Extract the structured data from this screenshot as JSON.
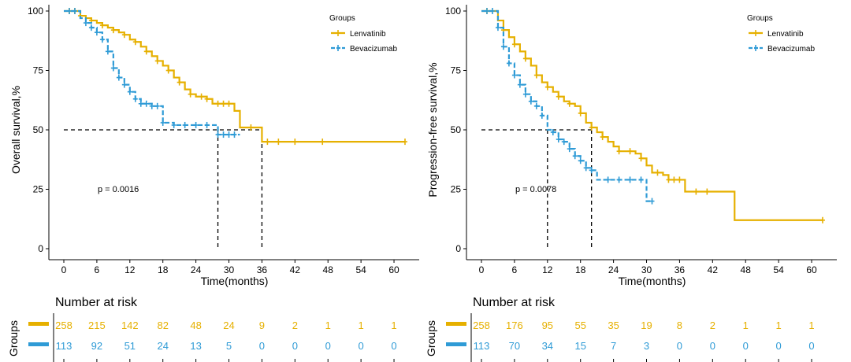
{
  "colors": {
    "lenvatinib": "#E6B000",
    "bevacizumab": "#2F9BD6",
    "ref_line": "#000000"
  },
  "chart_data": [
    {
      "type": "line",
      "subtype": "kaplan-meier",
      "title": "",
      "xlabel": "Time(months)",
      "ylabel": "Overall survival,%",
      "xticks": [
        0,
        6,
        12,
        18,
        24,
        30,
        36,
        42,
        48,
        54,
        60
      ],
      "yticks": [
        0,
        25,
        50,
        75,
        100
      ],
      "xlim": [
        0,
        62
      ],
      "ylim": [
        0,
        100
      ],
      "legend_title": "Groups",
      "pvalue_label": "p = 0.0016",
      "median_lines": [
        28,
        36
      ],
      "series": [
        {
          "name": "Lenvatinib",
          "key": "lenvatinib",
          "steps": [
            [
              0,
              100
            ],
            [
              2,
              100
            ],
            [
              3,
              98
            ],
            [
              4,
              97
            ],
            [
              5,
              96
            ],
            [
              6,
              95
            ],
            [
              7,
              94
            ],
            [
              8,
              93
            ],
            [
              9,
              92
            ],
            [
              10,
              91
            ],
            [
              11,
              90
            ],
            [
              12,
              88
            ],
            [
              13,
              87
            ],
            [
              14,
              85
            ],
            [
              15,
              83
            ],
            [
              16,
              81
            ],
            [
              17,
              79
            ],
            [
              18,
              77
            ],
            [
              19,
              75
            ],
            [
              20,
              72
            ],
            [
              21,
              70
            ],
            [
              22,
              67
            ],
            [
              23,
              65
            ],
            [
              24,
              64
            ],
            [
              26,
              63
            ],
            [
              27,
              61
            ],
            [
              31,
              58
            ],
            [
              32,
              51
            ],
            [
              36,
              45
            ],
            [
              62,
              45
            ]
          ],
          "censor_x": [
            1,
            2,
            3,
            5,
            7,
            9,
            11,
            13,
            15,
            17,
            19,
            21,
            23,
            25,
            26,
            28,
            29,
            30,
            34,
            37,
            39,
            42,
            47,
            62
          ],
          "risk": [
            258,
            215,
            142,
            82,
            48,
            24,
            9,
            2,
            1,
            1,
            1
          ]
        },
        {
          "name": "Bevacizumab",
          "key": "bevacizumab",
          "steps": [
            [
              0,
              100
            ],
            [
              2,
              100
            ],
            [
              3,
              97
            ],
            [
              4,
              95
            ],
            [
              5,
              93
            ],
            [
              6,
              91
            ],
            [
              7,
              88
            ],
            [
              8,
              83
            ],
            [
              9,
              76
            ],
            [
              10,
              72
            ],
            [
              11,
              69
            ],
            [
              12,
              66
            ],
            [
              13,
              63
            ],
            [
              14,
              61
            ],
            [
              16,
              60
            ],
            [
              18,
              53
            ],
            [
              20,
              52
            ],
            [
              28,
              48
            ],
            [
              32,
              48
            ]
          ],
          "censor_x": [
            1,
            2,
            4,
            5,
            6,
            7,
            8,
            9,
            10,
            11,
            12,
            13,
            14,
            15,
            16,
            17,
            18,
            20,
            22,
            24,
            26,
            28,
            29,
            30,
            31
          ],
          "risk": [
            113,
            92,
            51,
            24,
            13,
            5,
            0,
            0,
            0,
            0,
            0
          ]
        }
      ]
    },
    {
      "type": "line",
      "subtype": "kaplan-meier",
      "title": "",
      "xlabel": "Time(months)",
      "ylabel": "Progression-free survival,%",
      "xticks": [
        0,
        6,
        12,
        18,
        24,
        30,
        36,
        42,
        48,
        54,
        60
      ],
      "yticks": [
        0,
        25,
        50,
        75,
        100
      ],
      "xlim": [
        0,
        62
      ],
      "ylim": [
        0,
        100
      ],
      "legend_title": "Groups",
      "pvalue_label": "p = 0.0078",
      "median_lines": [
        12,
        20
      ],
      "series": [
        {
          "name": "Lenvatinib",
          "key": "lenvatinib",
          "steps": [
            [
              0,
              100
            ],
            [
              2,
              100
            ],
            [
              3,
              96
            ],
            [
              4,
              92
            ],
            [
              5,
              89
            ],
            [
              6,
              86
            ],
            [
              7,
              83
            ],
            [
              8,
              80
            ],
            [
              9,
              77
            ],
            [
              10,
              73
            ],
            [
              11,
              70
            ],
            [
              12,
              68
            ],
            [
              13,
              66
            ],
            [
              14,
              64
            ],
            [
              15,
              62
            ],
            [
              16,
              61
            ],
            [
              17,
              60
            ],
            [
              18,
              57
            ],
            [
              19,
              53
            ],
            [
              20,
              51
            ],
            [
              21,
              49
            ],
            [
              22,
              47
            ],
            [
              23,
              45
            ],
            [
              24,
              43
            ],
            [
              25,
              41
            ],
            [
              28,
              40
            ],
            [
              29,
              38
            ],
            [
              30,
              35
            ],
            [
              31,
              32
            ],
            [
              33,
              31
            ],
            [
              34,
              29
            ],
            [
              37,
              24
            ],
            [
              42,
              24
            ],
            [
              46,
              12
            ],
            [
              62,
              12
            ]
          ],
          "censor_x": [
            1,
            4,
            6,
            8,
            10,
            12,
            14,
            16,
            18,
            20,
            22,
            25,
            27,
            29,
            32,
            34,
            35,
            36,
            39,
            41,
            62
          ],
          "risk": [
            258,
            176,
            95,
            55,
            35,
            19,
            8,
            2,
            1,
            1,
            1
          ]
        },
        {
          "name": "Bevacizumab",
          "key": "bevacizumab",
          "steps": [
            [
              0,
              100
            ],
            [
              2,
              100
            ],
            [
              3,
              93
            ],
            [
              4,
              85
            ],
            [
              5,
              78
            ],
            [
              6,
              73
            ],
            [
              7,
              69
            ],
            [
              8,
              65
            ],
            [
              9,
              62
            ],
            [
              10,
              60
            ],
            [
              11,
              56
            ],
            [
              12,
              50
            ],
            [
              13,
              49
            ],
            [
              14,
              46
            ],
            [
              15,
              45
            ],
            [
              16,
              42
            ],
            [
              17,
              39
            ],
            [
              18,
              37
            ],
            [
              19,
              34
            ],
            [
              20,
              33
            ],
            [
              21,
              29
            ],
            [
              30,
              20
            ],
            [
              31,
              20
            ]
          ],
          "censor_x": [
            1,
            2,
            3,
            4,
            5,
            6,
            7,
            8,
            9,
            10,
            11,
            13,
            14,
            15,
            16,
            17,
            18,
            19,
            20,
            23,
            25,
            27,
            29,
            31
          ],
          "risk": [
            113,
            70,
            34,
            15,
            7,
            3,
            0,
            0,
            0,
            0,
            0
          ]
        }
      ]
    }
  ],
  "risk_tables": [
    {
      "title": "Number at risk",
      "axis_label": "Groups"
    },
    {
      "title": "Number at risk",
      "axis_label": "Groups"
    }
  ]
}
